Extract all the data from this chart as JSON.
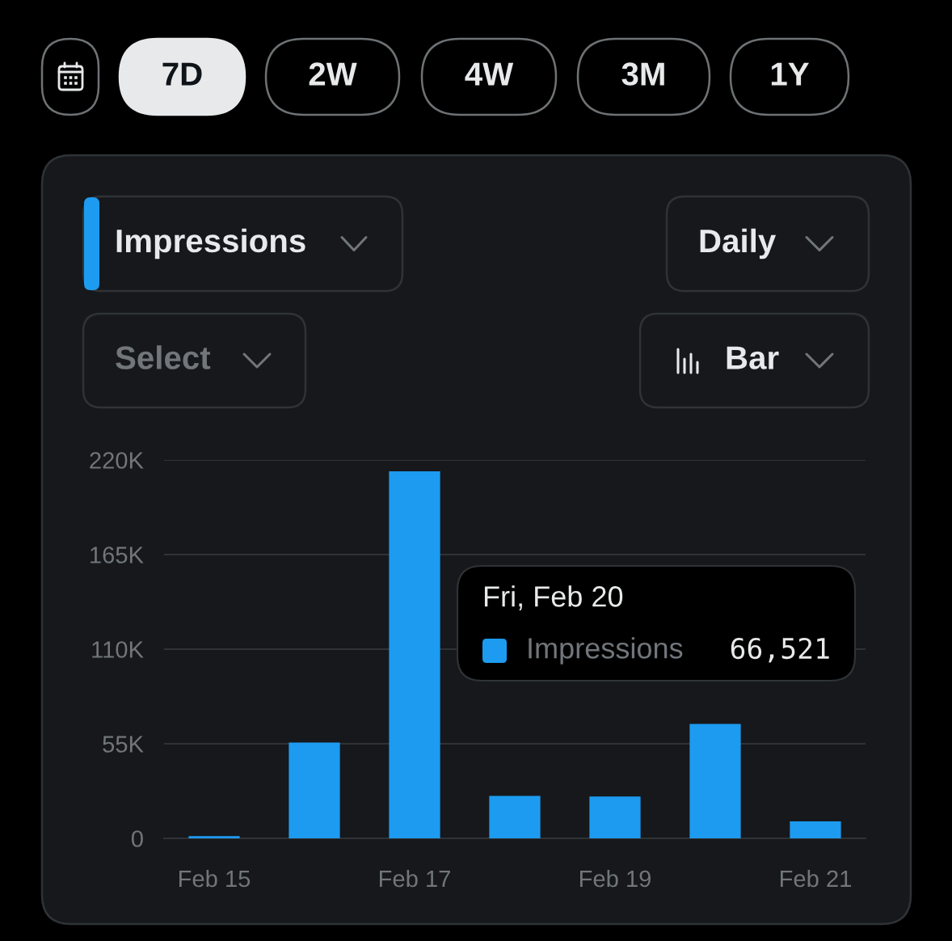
{
  "chart_data": {
    "type": "bar",
    "categories": [
      "Feb 15",
      null,
      "Feb 17",
      null,
      "Feb 19",
      null,
      "Feb 21"
    ],
    "values": [
      1300,
      55700,
      213400,
      24700,
      24300,
      66521,
      9900
    ],
    "color": "#1d9bf0",
    "ylim": [
      0,
      220000
    ],
    "yticks": [
      0,
      {
        "value": 55000,
        "label": "55K"
      },
      {
        "value": 110000,
        "label": "110K"
      },
      {
        "value": 165000,
        "label": "165K"
      },
      {
        "value": 220000,
        "label": "220K"
      }
    ],
    "grid": "y",
    "annotations": [
      "7D",
      "2W",
      "4W",
      "3M",
      "1Y",
      "Impressions",
      "Daily",
      "Select",
      "Bar",
      "Fri, Feb 20",
      "Impressions",
      "66,521"
    ]
  }
}
